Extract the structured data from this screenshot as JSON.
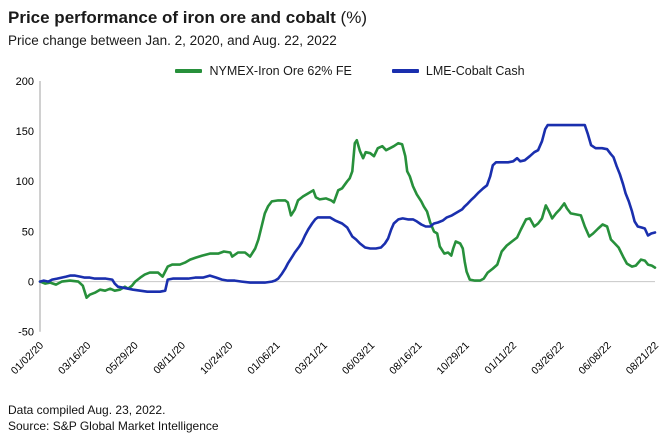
{
  "header": {
    "title": "Price performance of iron ore and cobalt",
    "title_suffix": " (%)",
    "subtitle": "Price change between Jan. 2, 2020, and Aug. 22, 2022"
  },
  "footer": {
    "compiled": "Data compiled Aug. 23, 2022.",
    "source": "Source: S&P Global Market Intelligence"
  },
  "chart_data": {
    "type": "line",
    "title": "Price performance of iron ore and cobalt (%)",
    "subtitle": "Price change between Jan. 2, 2020, and Aug. 22, 2022",
    "ylabel": "",
    "xlabel": "",
    "ylim": [
      -50,
      200
    ],
    "y_ticks": [
      200,
      150,
      100,
      50,
      0,
      -50
    ],
    "x_unit": "days since 01/02/20",
    "x_range": [
      0,
      963
    ],
    "x_tick_labels": [
      "01/02/20",
      "03/16/20",
      "05/29/20",
      "08/11/20",
      "10/24/20",
      "01/06/21",
      "03/21/21",
      "06/03/21",
      "08/16/21",
      "10/29/21",
      "01/11/22",
      "03/26/22",
      "06/08/22",
      "08/21/22"
    ],
    "grid": "zero-line-only",
    "legend_position": "top-center",
    "axis_color": "#b0b0b0",
    "zero_line_color": "#c7c7c7",
    "series": [
      {
        "name": "NYMEX-Iron Ore 62% FE",
        "color": "#27903b",
        "points": [
          [
            0,
            0
          ],
          [
            8,
            -2
          ],
          [
            16,
            -1
          ],
          [
            25,
            -3
          ],
          [
            34,
            0
          ],
          [
            47,
            1
          ],
          [
            60,
            0
          ],
          [
            67,
            -4
          ],
          [
            73,
            -16
          ],
          [
            78,
            -13
          ],
          [
            86,
            -11
          ],
          [
            94,
            -8
          ],
          [
            102,
            -9
          ],
          [
            110,
            -7
          ],
          [
            117,
            -9
          ],
          [
            125,
            -8
          ],
          [
            133,
            -5
          ],
          [
            138,
            -7
          ],
          [
            144,
            -4
          ],
          [
            149,
            0
          ],
          [
            157,
            4
          ],
          [
            164,
            7
          ],
          [
            172,
            9
          ],
          [
            185,
            9
          ],
          [
            192,
            5
          ],
          [
            200,
            15
          ],
          [
            207,
            17
          ],
          [
            219,
            17
          ],
          [
            227,
            19
          ],
          [
            235,
            22
          ],
          [
            244,
            24
          ],
          [
            254,
            26
          ],
          [
            266,
            28
          ],
          [
            279,
            28
          ],
          [
            288,
            30
          ],
          [
            298,
            29
          ],
          [
            301,
            25
          ],
          [
            310,
            29
          ],
          [
            321,
            29
          ],
          [
            329,
            25
          ],
          [
            337,
            33
          ],
          [
            342,
            42
          ],
          [
            347,
            55
          ],
          [
            352,
            68
          ],
          [
            357,
            75
          ],
          [
            363,
            80
          ],
          [
            373,
            81
          ],
          [
            384,
            81
          ],
          [
            388,
            79
          ],
          [
            393,
            66
          ],
          [
            399,
            72
          ],
          [
            404,
            81
          ],
          [
            412,
            85
          ],
          [
            420,
            88
          ],
          [
            428,
            91
          ],
          [
            432,
            84
          ],
          [
            438,
            82
          ],
          [
            448,
            83
          ],
          [
            456,
            81
          ],
          [
            460,
            79
          ],
          [
            467,
            91
          ],
          [
            473,
            93
          ],
          [
            481,
            100
          ],
          [
            485,
            103
          ],
          [
            489,
            110
          ],
          [
            493,
            138
          ],
          [
            496,
            141
          ],
          [
            501,
            130
          ],
          [
            506,
            123
          ],
          [
            510,
            129
          ],
          [
            517,
            128
          ],
          [
            523,
            125
          ],
          [
            529,
            133
          ],
          [
            536,
            135
          ],
          [
            542,
            131
          ],
          [
            548,
            133
          ],
          [
            554,
            135
          ],
          [
            561,
            138
          ],
          [
            567,
            137
          ],
          [
            572,
            125
          ],
          [
            575,
            110
          ],
          [
            579,
            105
          ],
          [
            584,
            95
          ],
          [
            590,
            87
          ],
          [
            597,
            80
          ],
          [
            601,
            75
          ],
          [
            606,
            70
          ],
          [
            611,
            59
          ],
          [
            617,
            50
          ],
          [
            622,
            48
          ],
          [
            626,
            35
          ],
          [
            633,
            28
          ],
          [
            639,
            29
          ],
          [
            644,
            26
          ],
          [
            647,
            33
          ],
          [
            651,
            40
          ],
          [
            658,
            38
          ],
          [
            662,
            33
          ],
          [
            665,
            20
          ],
          [
            668,
            10
          ],
          [
            673,
            2
          ],
          [
            681,
            1
          ],
          [
            689,
            1
          ],
          [
            695,
            3
          ],
          [
            701,
            9
          ],
          [
            709,
            13
          ],
          [
            716,
            17
          ],
          [
            723,
            30
          ],
          [
            731,
            36
          ],
          [
            739,
            40
          ],
          [
            747,
            44
          ],
          [
            753,
            52
          ],
          [
            761,
            62
          ],
          [
            767,
            63
          ],
          [
            774,
            55
          ],
          [
            780,
            58
          ],
          [
            786,
            63
          ],
          [
            792,
            76
          ],
          [
            797,
            70
          ],
          [
            802,
            63
          ],
          [
            808,
            68
          ],
          [
            814,
            72
          ],
          [
            821,
            78
          ],
          [
            825,
            73
          ],
          [
            831,
            68
          ],
          [
            839,
            67
          ],
          [
            847,
            66
          ],
          [
            853,
            55
          ],
          [
            860,
            45
          ],
          [
            866,
            48
          ],
          [
            874,
            53
          ],
          [
            881,
            57
          ],
          [
            888,
            55
          ],
          [
            894,
            42
          ],
          [
            900,
            38
          ],
          [
            906,
            34
          ],
          [
            913,
            25
          ],
          [
            919,
            18
          ],
          [
            927,
            15
          ],
          [
            933,
            16
          ],
          [
            941,
            22
          ],
          [
            947,
            21
          ],
          [
            952,
            17
          ],
          [
            958,
            16
          ],
          [
            963,
            14
          ]
        ]
      },
      {
        "name": "LME-Cobalt Cash",
        "color": "#1a2fae",
        "points": [
          [
            0,
            0
          ],
          [
            6,
            1
          ],
          [
            13,
            0
          ],
          [
            19,
            2
          ],
          [
            27,
            3
          ],
          [
            34,
            4
          ],
          [
            41,
            5
          ],
          [
            47,
            6
          ],
          [
            55,
            6
          ],
          [
            63,
            5
          ],
          [
            70,
            4
          ],
          [
            78,
            4
          ],
          [
            86,
            3
          ],
          [
            94,
            3
          ],
          [
            103,
            3
          ],
          [
            113,
            2
          ],
          [
            117,
            -2
          ],
          [
            122,
            -5
          ],
          [
            130,
            -6
          ],
          [
            138,
            -7
          ],
          [
            146,
            -8
          ],
          [
            157,
            -9
          ],
          [
            168,
            -10
          ],
          [
            179,
            -10
          ],
          [
            188,
            -10
          ],
          [
            196,
            -9
          ],
          [
            200,
            2
          ],
          [
            208,
            3
          ],
          [
            219,
            3
          ],
          [
            232,
            3
          ],
          [
            243,
            4
          ],
          [
            255,
            4
          ],
          [
            266,
            6
          ],
          [
            276,
            4
          ],
          [
            285,
            2
          ],
          [
            294,
            1
          ],
          [
            305,
            1
          ],
          [
            316,
            0
          ],
          [
            329,
            -1
          ],
          [
            341,
            -1
          ],
          [
            352,
            -1
          ],
          [
            363,
            0
          ],
          [
            368,
            1
          ],
          [
            373,
            3
          ],
          [
            379,
            8
          ],
          [
            384,
            13
          ],
          [
            388,
            18
          ],
          [
            395,
            25
          ],
          [
            399,
            29
          ],
          [
            406,
            35
          ],
          [
            410,
            39
          ],
          [
            415,
            46
          ],
          [
            420,
            52
          ],
          [
            426,
            58
          ],
          [
            431,
            62
          ],
          [
            435,
            64
          ],
          [
            445,
            64
          ],
          [
            454,
            64
          ],
          [
            462,
            61
          ],
          [
            473,
            58
          ],
          [
            481,
            54
          ],
          [
            489,
            45
          ],
          [
            495,
            42
          ],
          [
            501,
            38
          ],
          [
            509,
            34
          ],
          [
            517,
            33
          ],
          [
            526,
            33
          ],
          [
            534,
            34
          ],
          [
            540,
            38
          ],
          [
            545,
            43
          ],
          [
            550,
            52
          ],
          [
            554,
            58
          ],
          [
            561,
            62
          ],
          [
            568,
            63
          ],
          [
            576,
            62
          ],
          [
            584,
            62
          ],
          [
            590,
            60
          ],
          [
            597,
            57
          ],
          [
            604,
            55
          ],
          [
            611,
            55
          ],
          [
            617,
            58
          ],
          [
            623,
            59
          ],
          [
            631,
            61
          ],
          [
            637,
            64
          ],
          [
            645,
            66
          ],
          [
            653,
            69
          ],
          [
            661,
            72
          ],
          [
            665,
            75
          ],
          [
            670,
            78
          ],
          [
            676,
            82
          ],
          [
            681,
            85
          ],
          [
            687,
            89
          ],
          [
            694,
            93
          ],
          [
            700,
            96
          ],
          [
            705,
            105
          ],
          [
            709,
            116
          ],
          [
            714,
            119
          ],
          [
            723,
            119
          ],
          [
            733,
            119
          ],
          [
            741,
            120
          ],
          [
            747,
            123
          ],
          [
            752,
            120
          ],
          [
            759,
            121
          ],
          [
            767,
            125
          ],
          [
            774,
            129
          ],
          [
            780,
            131
          ],
          [
            786,
            140
          ],
          [
            791,
            152
          ],
          [
            795,
            156
          ],
          [
            806,
            156
          ],
          [
            817,
            156
          ],
          [
            830,
            156
          ],
          [
            842,
            156
          ],
          [
            853,
            156
          ],
          [
            858,
            147
          ],
          [
            863,
            136
          ],
          [
            870,
            133
          ],
          [
            880,
            133
          ],
          [
            888,
            132
          ],
          [
            894,
            127
          ],
          [
            898,
            124
          ],
          [
            903,
            115
          ],
          [
            908,
            107
          ],
          [
            913,
            97
          ],
          [
            917,
            88
          ],
          [
            922,
            80
          ],
          [
            927,
            70
          ],
          [
            931,
            60
          ],
          [
            936,
            55
          ],
          [
            942,
            54
          ],
          [
            947,
            53
          ],
          [
            952,
            46
          ],
          [
            957,
            48
          ],
          [
            963,
            49
          ]
        ]
      }
    ]
  }
}
